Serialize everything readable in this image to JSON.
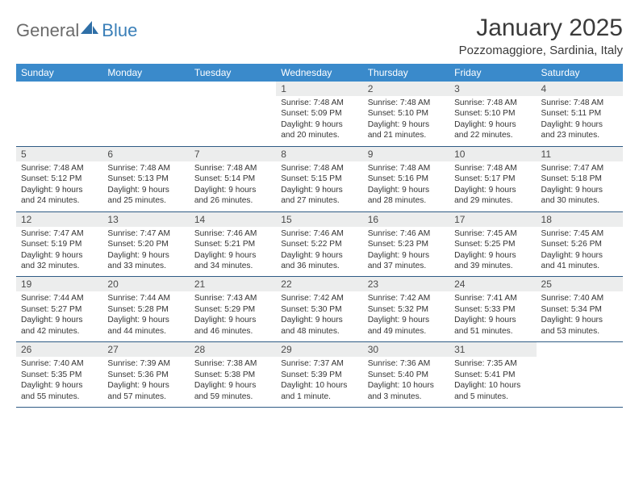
{
  "brand": {
    "general": "General",
    "blue": "Blue"
  },
  "title": {
    "month": "January 2025",
    "location": "Pozzomaggiore, Sardinia, Italy"
  },
  "columns": [
    "Sunday",
    "Monday",
    "Tuesday",
    "Wednesday",
    "Thursday",
    "Friday",
    "Saturday"
  ],
  "colors": {
    "header_bg": "#3a8acb",
    "header_text": "#ffffff",
    "daynum_bg": "#eceded",
    "rule": "#2f5b85",
    "title_text": "#3a3a3a",
    "body_text": "#343434",
    "logo_gray": "#6b6b6b",
    "logo_blue": "#3a7fb8"
  },
  "calendar_type": "month_grid",
  "weeks": [
    [
      {
        "day": null
      },
      {
        "day": null
      },
      {
        "day": null
      },
      {
        "day": 1,
        "sunrise": "Sunrise: 7:48 AM",
        "sunset": "Sunset: 5:09 PM",
        "dayl1": "Daylight: 9 hours",
        "dayl2": "and 20 minutes."
      },
      {
        "day": 2,
        "sunrise": "Sunrise: 7:48 AM",
        "sunset": "Sunset: 5:10 PM",
        "dayl1": "Daylight: 9 hours",
        "dayl2": "and 21 minutes."
      },
      {
        "day": 3,
        "sunrise": "Sunrise: 7:48 AM",
        "sunset": "Sunset: 5:10 PM",
        "dayl1": "Daylight: 9 hours",
        "dayl2": "and 22 minutes."
      },
      {
        "day": 4,
        "sunrise": "Sunrise: 7:48 AM",
        "sunset": "Sunset: 5:11 PM",
        "dayl1": "Daylight: 9 hours",
        "dayl2": "and 23 minutes."
      }
    ],
    [
      {
        "day": 5,
        "sunrise": "Sunrise: 7:48 AM",
        "sunset": "Sunset: 5:12 PM",
        "dayl1": "Daylight: 9 hours",
        "dayl2": "and 24 minutes."
      },
      {
        "day": 6,
        "sunrise": "Sunrise: 7:48 AM",
        "sunset": "Sunset: 5:13 PM",
        "dayl1": "Daylight: 9 hours",
        "dayl2": "and 25 minutes."
      },
      {
        "day": 7,
        "sunrise": "Sunrise: 7:48 AM",
        "sunset": "Sunset: 5:14 PM",
        "dayl1": "Daylight: 9 hours",
        "dayl2": "and 26 minutes."
      },
      {
        "day": 8,
        "sunrise": "Sunrise: 7:48 AM",
        "sunset": "Sunset: 5:15 PM",
        "dayl1": "Daylight: 9 hours",
        "dayl2": "and 27 minutes."
      },
      {
        "day": 9,
        "sunrise": "Sunrise: 7:48 AM",
        "sunset": "Sunset: 5:16 PM",
        "dayl1": "Daylight: 9 hours",
        "dayl2": "and 28 minutes."
      },
      {
        "day": 10,
        "sunrise": "Sunrise: 7:48 AM",
        "sunset": "Sunset: 5:17 PM",
        "dayl1": "Daylight: 9 hours",
        "dayl2": "and 29 minutes."
      },
      {
        "day": 11,
        "sunrise": "Sunrise: 7:47 AM",
        "sunset": "Sunset: 5:18 PM",
        "dayl1": "Daylight: 9 hours",
        "dayl2": "and 30 minutes."
      }
    ],
    [
      {
        "day": 12,
        "sunrise": "Sunrise: 7:47 AM",
        "sunset": "Sunset: 5:19 PM",
        "dayl1": "Daylight: 9 hours",
        "dayl2": "and 32 minutes."
      },
      {
        "day": 13,
        "sunrise": "Sunrise: 7:47 AM",
        "sunset": "Sunset: 5:20 PM",
        "dayl1": "Daylight: 9 hours",
        "dayl2": "and 33 minutes."
      },
      {
        "day": 14,
        "sunrise": "Sunrise: 7:46 AM",
        "sunset": "Sunset: 5:21 PM",
        "dayl1": "Daylight: 9 hours",
        "dayl2": "and 34 minutes."
      },
      {
        "day": 15,
        "sunrise": "Sunrise: 7:46 AM",
        "sunset": "Sunset: 5:22 PM",
        "dayl1": "Daylight: 9 hours",
        "dayl2": "and 36 minutes."
      },
      {
        "day": 16,
        "sunrise": "Sunrise: 7:46 AM",
        "sunset": "Sunset: 5:23 PM",
        "dayl1": "Daylight: 9 hours",
        "dayl2": "and 37 minutes."
      },
      {
        "day": 17,
        "sunrise": "Sunrise: 7:45 AM",
        "sunset": "Sunset: 5:25 PM",
        "dayl1": "Daylight: 9 hours",
        "dayl2": "and 39 minutes."
      },
      {
        "day": 18,
        "sunrise": "Sunrise: 7:45 AM",
        "sunset": "Sunset: 5:26 PM",
        "dayl1": "Daylight: 9 hours",
        "dayl2": "and 41 minutes."
      }
    ],
    [
      {
        "day": 19,
        "sunrise": "Sunrise: 7:44 AM",
        "sunset": "Sunset: 5:27 PM",
        "dayl1": "Daylight: 9 hours",
        "dayl2": "and 42 minutes."
      },
      {
        "day": 20,
        "sunrise": "Sunrise: 7:44 AM",
        "sunset": "Sunset: 5:28 PM",
        "dayl1": "Daylight: 9 hours",
        "dayl2": "and 44 minutes."
      },
      {
        "day": 21,
        "sunrise": "Sunrise: 7:43 AM",
        "sunset": "Sunset: 5:29 PM",
        "dayl1": "Daylight: 9 hours",
        "dayl2": "and 46 minutes."
      },
      {
        "day": 22,
        "sunrise": "Sunrise: 7:42 AM",
        "sunset": "Sunset: 5:30 PM",
        "dayl1": "Daylight: 9 hours",
        "dayl2": "and 48 minutes."
      },
      {
        "day": 23,
        "sunrise": "Sunrise: 7:42 AM",
        "sunset": "Sunset: 5:32 PM",
        "dayl1": "Daylight: 9 hours",
        "dayl2": "and 49 minutes."
      },
      {
        "day": 24,
        "sunrise": "Sunrise: 7:41 AM",
        "sunset": "Sunset: 5:33 PM",
        "dayl1": "Daylight: 9 hours",
        "dayl2": "and 51 minutes."
      },
      {
        "day": 25,
        "sunrise": "Sunrise: 7:40 AM",
        "sunset": "Sunset: 5:34 PM",
        "dayl1": "Daylight: 9 hours",
        "dayl2": "and 53 minutes."
      }
    ],
    [
      {
        "day": 26,
        "sunrise": "Sunrise: 7:40 AM",
        "sunset": "Sunset: 5:35 PM",
        "dayl1": "Daylight: 9 hours",
        "dayl2": "and 55 minutes."
      },
      {
        "day": 27,
        "sunrise": "Sunrise: 7:39 AM",
        "sunset": "Sunset: 5:36 PM",
        "dayl1": "Daylight: 9 hours",
        "dayl2": "and 57 minutes."
      },
      {
        "day": 28,
        "sunrise": "Sunrise: 7:38 AM",
        "sunset": "Sunset: 5:38 PM",
        "dayl1": "Daylight: 9 hours",
        "dayl2": "and 59 minutes."
      },
      {
        "day": 29,
        "sunrise": "Sunrise: 7:37 AM",
        "sunset": "Sunset: 5:39 PM",
        "dayl1": "Daylight: 10 hours",
        "dayl2": "and 1 minute."
      },
      {
        "day": 30,
        "sunrise": "Sunrise: 7:36 AM",
        "sunset": "Sunset: 5:40 PM",
        "dayl1": "Daylight: 10 hours",
        "dayl2": "and 3 minutes."
      },
      {
        "day": 31,
        "sunrise": "Sunrise: 7:35 AM",
        "sunset": "Sunset: 5:41 PM",
        "dayl1": "Daylight: 10 hours",
        "dayl2": "and 5 minutes."
      },
      {
        "day": null
      }
    ]
  ]
}
